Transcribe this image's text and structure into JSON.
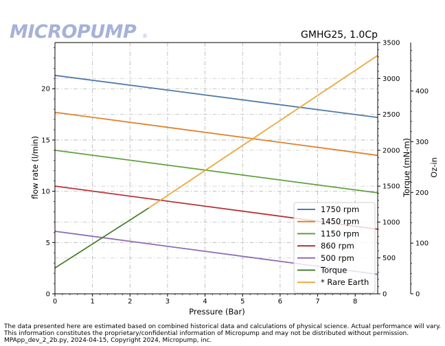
{
  "logo": {
    "text": "MICROPUMP",
    "reg": "®"
  },
  "footer": {
    "line1": "The data presented here are estimated based on combined historical data and calculations of physical science.  Actual performance will vary.",
    "line2": "This information constitutes the proprietary/confidential information of Micropump and may not be distributed without permission.",
    "line3": "MPApp_dev_2_2b.py, 2024-04-15, Copyright 2024, Micropump, inc."
  },
  "chart_data": {
    "type": "line",
    "title": "GMHG25,  1.0Cp",
    "xlabel": "Pressure (Bar)",
    "ylabel": "flow rate (l/min)",
    "y2label": "Torque (mN-m)",
    "y3label": "Oz-in",
    "xlim": [
      0,
      8.6
    ],
    "ylim": [
      0,
      24.5
    ],
    "y2lim": [
      0,
      3500
    ],
    "y3lim": [
      0,
      495.6
    ],
    "xticks": [
      0,
      1,
      2,
      3,
      4,
      5,
      6,
      7,
      8
    ],
    "yticks": [
      0,
      5,
      10,
      15,
      20
    ],
    "y2ticks": [
      0,
      500,
      1000,
      1500,
      2000,
      2500,
      3000,
      3500
    ],
    "y3ticks": [
      0,
      100,
      200,
      300,
      400
    ],
    "grid": true,
    "legend_position": "lower-right",
    "series": [
      {
        "name": "1750 rpm",
        "axis": "flow",
        "color": "#4e79a7",
        "x": [
          0,
          8.6
        ],
        "y": [
          21.3,
          17.2
        ]
      },
      {
        "name": "1450 rpm",
        "axis": "flow",
        "color": "#e0812a",
        "x": [
          0,
          8.6
        ],
        "y": [
          17.7,
          13.5
        ]
      },
      {
        "name": "1150 rpm",
        "axis": "flow",
        "color": "#5ea03c",
        "x": [
          0,
          8.6
        ],
        "y": [
          14.0,
          9.85
        ]
      },
      {
        "name": "860 rpm",
        "axis": "flow",
        "color": "#b83232",
        "x": [
          0,
          8.6
        ],
        "y": [
          10.5,
          6.3
        ]
      },
      {
        "name": "500 rpm",
        "axis": "flow",
        "color": "#8e6bb5",
        "x": [
          0,
          8.6
        ],
        "y": [
          6.1,
          1.9
        ]
      },
      {
        "name": "Torque",
        "axis": "torque",
        "color": "#4a7f2c",
        "x": [
          0,
          2.5
        ],
        "y": [
          360,
          1195
        ]
      },
      {
        "name": "* Rare Earth",
        "axis": "torque",
        "color": "#e8a93a",
        "x": [
          2.5,
          8.6
        ],
        "y": [
          1195,
          3320
        ]
      }
    ]
  }
}
